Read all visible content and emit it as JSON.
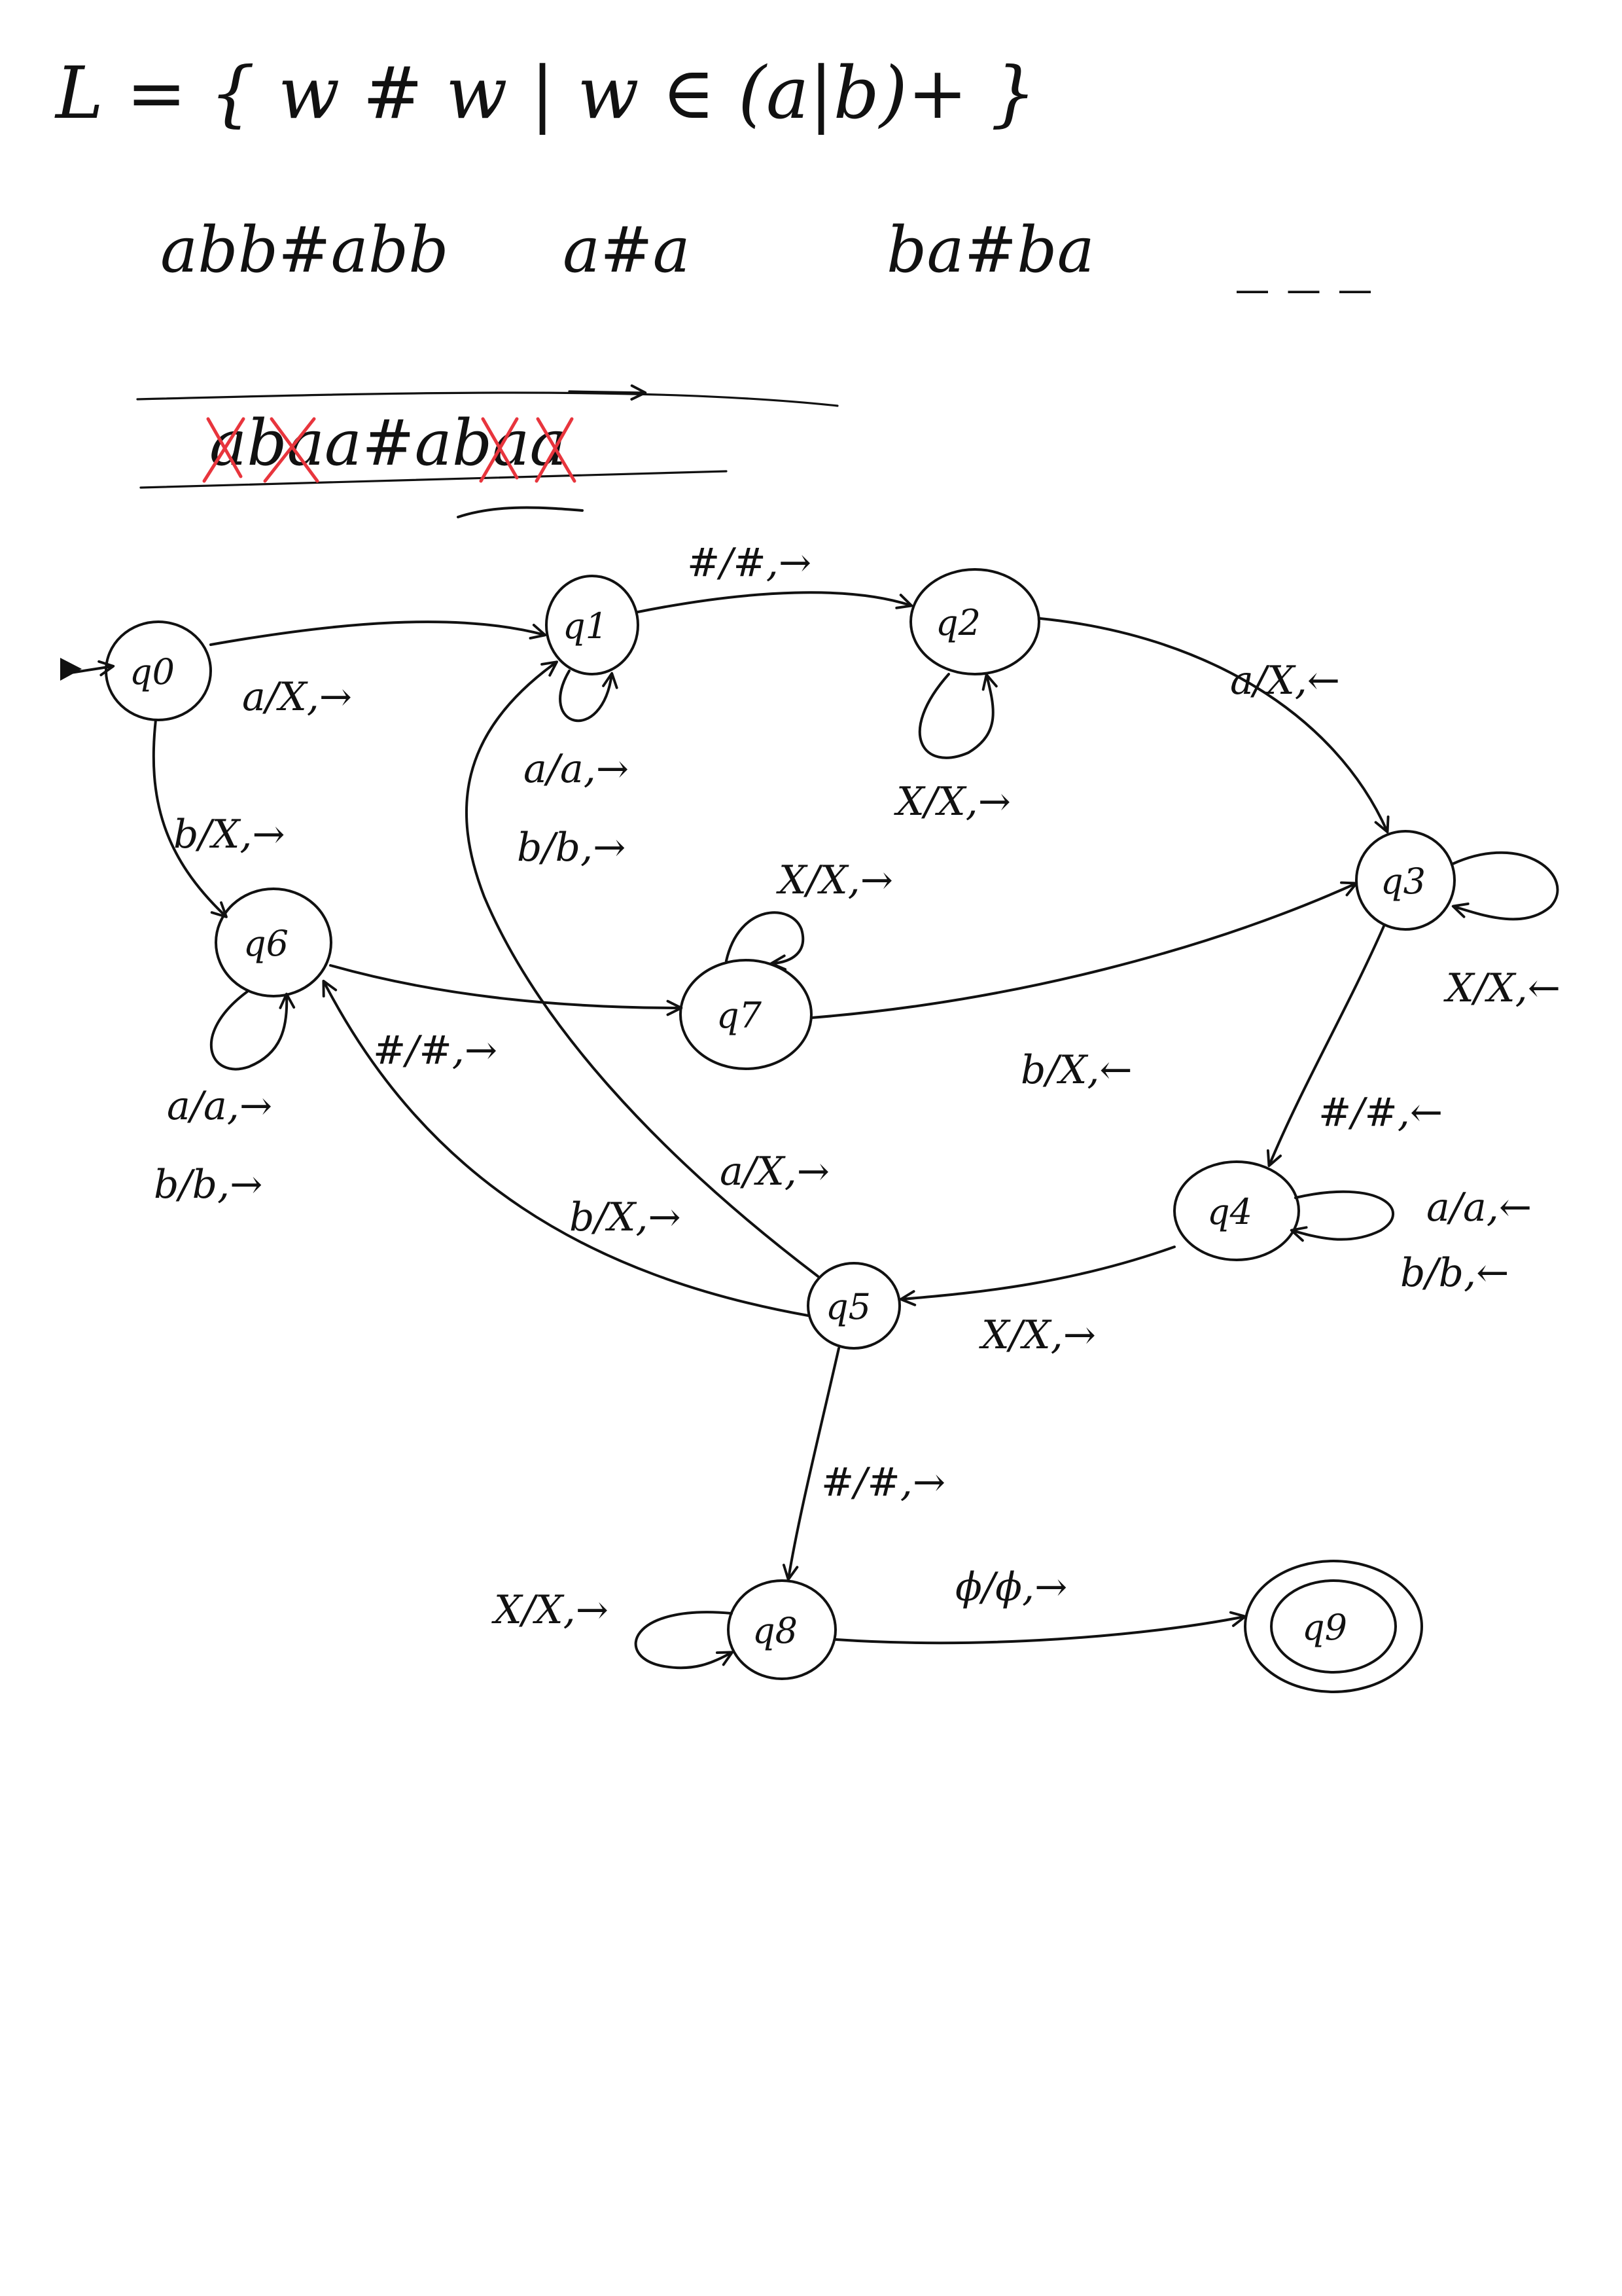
{
  "language_definition": "L = { w # w | w ∈ (a|b)+ }",
  "examples": [
    "abb#abb",
    "a#a",
    "ba#ba",
    "_ _  _"
  ],
  "worked_example": "abaa#abaa",
  "states": {
    "q0": "q0",
    "q1": "q1",
    "q2": "q2",
    "q3": "q3",
    "q4": "q4",
    "q5": "q5",
    "q6": "q6",
    "q7": "q7",
    "q8": "q8",
    "q9": "q9"
  },
  "transitions": {
    "q0_q1": "a/X,→",
    "q0_q6": "b/X,→",
    "q1_loop_a": "a/a,→",
    "q1_loop_b": "b/b,→",
    "q1_q2": "#/#,→",
    "q2_loop": "X/X,→",
    "q2_q3": "a/X,←",
    "q3_loop": "X/X,←",
    "q3_q4": "#/#,←",
    "q4_loop_a": "a/a,←",
    "q4_loop_b": "b/b,←",
    "q4_q5": "X/X,→",
    "q5_q1": "a/X,→",
    "q5_q6": "b/X,→",
    "q5_q8": "#/#,→",
    "q6_loop_a": "a/a,→",
    "q6_loop_b": "b/b,→",
    "q6_q7": "#/#,→",
    "q7_loop": "X/X,→",
    "q7_q3": "b/X,←",
    "q8_loop": "X/X,→",
    "q8_q9": "ϕ/ϕ,→"
  },
  "colors": {
    "ink": "#111111",
    "correction": "#e8353d",
    "background": "#ffffff"
  }
}
